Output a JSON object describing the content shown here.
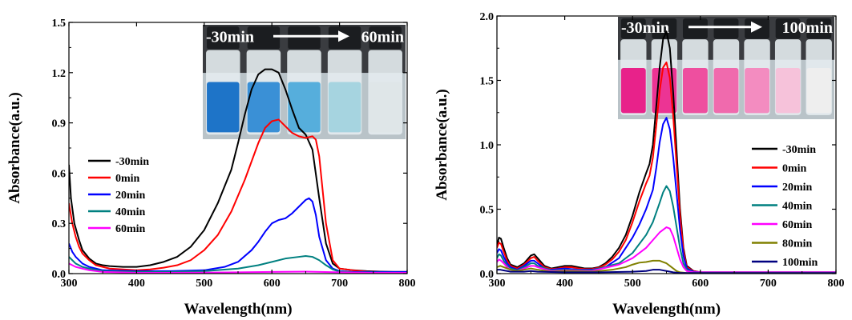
{
  "chart_data": [
    {
      "type": "line",
      "xlabel": "Wavelength(nm)",
      "ylabel": "Absorbance(a.u.)",
      "xlim": [
        300,
        800
      ],
      "ylim": [
        0,
        1.5
      ],
      "xticks": [
        "300",
        "400",
        "500",
        "600",
        "700",
        "800"
      ],
      "yticks": [
        "0.0",
        "0.3",
        "0.6",
        "0.9",
        "1.2",
        "1.5"
      ],
      "legend_position": "middle-left",
      "inset": {
        "label_start": "-30min",
        "label_end": "60min",
        "vial_colors": [
          "#1e74c8",
          "#3a90d6",
          "#56aedc",
          "#a6d4e0",
          "#dfe6e8"
        ]
      },
      "series": [
        {
          "name": "-30min",
          "color": "#000000",
          "x": [
            300,
            303,
            308,
            315,
            320,
            330,
            340,
            350,
            360,
            380,
            400,
            420,
            440,
            460,
            480,
            500,
            520,
            540,
            550,
            560,
            570,
            580,
            590,
            600,
            610,
            620,
            630,
            640,
            650,
            660,
            670,
            680,
            690,
            700,
            720,
            740,
            760,
            780,
            800
          ],
          "y": [
            0.65,
            0.45,
            0.3,
            0.2,
            0.14,
            0.09,
            0.06,
            0.05,
            0.045,
            0.04,
            0.04,
            0.05,
            0.07,
            0.1,
            0.16,
            0.26,
            0.42,
            0.62,
            0.78,
            0.95,
            1.1,
            1.19,
            1.22,
            1.22,
            1.2,
            1.1,
            0.98,
            0.87,
            0.83,
            0.74,
            0.45,
            0.18,
            0.06,
            0.03,
            0.02,
            0.015,
            0.012,
            0.01,
            0.01
          ]
        },
        {
          "name": "0min",
          "color": "#ff0000",
          "x": [
            300,
            305,
            310,
            315,
            320,
            330,
            340,
            350,
            360,
            380,
            400,
            420,
            440,
            460,
            480,
            500,
            520,
            540,
            560,
            580,
            590,
            600,
            610,
            620,
            630,
            640,
            650,
            660,
            665,
            670,
            680,
            690,
            700,
            720,
            740,
            760,
            780,
            800
          ],
          "y": [
            0.42,
            0.3,
            0.22,
            0.16,
            0.12,
            0.08,
            0.05,
            0.04,
            0.03,
            0.025,
            0.02,
            0.025,
            0.035,
            0.05,
            0.08,
            0.14,
            0.23,
            0.37,
            0.56,
            0.78,
            0.87,
            0.91,
            0.92,
            0.88,
            0.84,
            0.82,
            0.81,
            0.82,
            0.8,
            0.7,
            0.3,
            0.08,
            0.03,
            0.02,
            0.012,
            0.01,
            0.01,
            0.01
          ]
        },
        {
          "name": "20min",
          "color": "#0000ff",
          "x": [
            300,
            305,
            310,
            320,
            330,
            350,
            400,
            450,
            500,
            530,
            550,
            570,
            580,
            590,
            600,
            610,
            620,
            630,
            640,
            650,
            655,
            660,
            665,
            670,
            680,
            690,
            700,
            720,
            760,
            800
          ],
          "y": [
            0.18,
            0.13,
            0.1,
            0.06,
            0.04,
            0.02,
            0.015,
            0.015,
            0.02,
            0.04,
            0.07,
            0.14,
            0.19,
            0.25,
            0.3,
            0.32,
            0.33,
            0.36,
            0.4,
            0.44,
            0.45,
            0.43,
            0.35,
            0.22,
            0.08,
            0.03,
            0.015,
            0.01,
            0.01,
            0.01
          ]
        },
        {
          "name": "40min",
          "color": "#008080",
          "x": [
            300,
            305,
            310,
            320,
            330,
            350,
            400,
            450,
            500,
            550,
            580,
            600,
            620,
            640,
            650,
            660,
            670,
            680,
            690,
            700,
            720,
            760,
            800
          ],
          "y": [
            0.1,
            0.08,
            0.06,
            0.04,
            0.03,
            0.015,
            0.01,
            0.01,
            0.015,
            0.03,
            0.05,
            0.07,
            0.09,
            0.1,
            0.105,
            0.1,
            0.08,
            0.05,
            0.025,
            0.012,
            0.008,
            0.006,
            0.005
          ]
        },
        {
          "name": "60min",
          "color": "#ff00ff",
          "x": [
            300,
            305,
            310,
            320,
            330,
            350,
            400,
            450,
            500,
            550,
            600,
            650,
            700,
            750,
            800
          ],
          "y": [
            0.06,
            0.05,
            0.04,
            0.03,
            0.02,
            0.01,
            0.005,
            0.005,
            0.006,
            0.008,
            0.01,
            0.012,
            0.008,
            0.005,
            0.005
          ]
        }
      ]
    },
    {
      "type": "line",
      "xlabel": "Wavelength(nm)",
      "ylabel": "Absorbance(a.u.)",
      "xlim": [
        300,
        800
      ],
      "ylim": [
        0,
        2.0
      ],
      "xticks": [
        "300",
        "400",
        "500",
        "600",
        "700",
        "800"
      ],
      "yticks": [
        "0.0",
        "0.5",
        "1.0",
        "1.5",
        "2.0"
      ],
      "legend_position": "right",
      "inset": {
        "label_start": "-30min",
        "label_end": "100min",
        "vial_colors": [
          "#e8228a",
          "#ec3494",
          "#ee4f9f",
          "#f06aad",
          "#f38cc0",
          "#f6c2da",
          "#eeeeee"
        ]
      },
      "series": [
        {
          "name": "-30min",
          "color": "#000000",
          "x": [
            300,
            303,
            306,
            310,
            315,
            320,
            330,
            340,
            350,
            355,
            360,
            370,
            380,
            390,
            400,
            410,
            420,
            430,
            440,
            450,
            460,
            470,
            480,
            490,
            500,
            510,
            520,
            525,
            530,
            535,
            540,
            545,
            550,
            555,
            560,
            565,
            570,
            575,
            580,
            590,
            600,
            620,
            650,
            700,
            750,
            800
          ],
          "y": [
            0.22,
            0.28,
            0.27,
            0.2,
            0.12,
            0.07,
            0.05,
            0.08,
            0.14,
            0.15,
            0.12,
            0.06,
            0.04,
            0.05,
            0.06,
            0.06,
            0.05,
            0.04,
            0.04,
            0.05,
            0.08,
            0.13,
            0.2,
            0.3,
            0.45,
            0.63,
            0.78,
            0.85,
            1.0,
            1.3,
            1.6,
            1.82,
            1.88,
            1.75,
            1.4,
            0.95,
            0.5,
            0.2,
            0.06,
            0.02,
            0.01,
            0.01,
            0.01,
            0.01,
            0.01,
            0.01
          ]
        },
        {
          "name": "0min",
          "color": "#ff0000",
          "x": [
            300,
            303,
            306,
            310,
            315,
            320,
            330,
            340,
            350,
            355,
            360,
            370,
            380,
            390,
            400,
            410,
            420,
            430,
            440,
            450,
            460,
            470,
            480,
            490,
            500,
            510,
            520,
            525,
            530,
            535,
            540,
            545,
            550,
            555,
            560,
            565,
            570,
            575,
            580,
            590,
            600,
            620,
            650,
            700,
            750,
            800
          ],
          "y": [
            0.2,
            0.24,
            0.23,
            0.17,
            0.1,
            0.06,
            0.04,
            0.07,
            0.12,
            0.13,
            0.1,
            0.05,
            0.035,
            0.04,
            0.05,
            0.05,
            0.04,
            0.035,
            0.035,
            0.045,
            0.07,
            0.11,
            0.17,
            0.26,
            0.4,
            0.56,
            0.7,
            0.76,
            0.9,
            1.15,
            1.42,
            1.6,
            1.64,
            1.52,
            1.22,
            0.84,
            0.45,
            0.18,
            0.05,
            0.02,
            0.01,
            0.01,
            0.01,
            0.01,
            0.01,
            0.01
          ]
        },
        {
          "name": "20min",
          "color": "#0000ff",
          "x": [
            300,
            303,
            306,
            310,
            315,
            320,
            330,
            340,
            350,
            355,
            360,
            370,
            380,
            400,
            420,
            440,
            460,
            480,
            500,
            510,
            520,
            530,
            535,
            540,
            545,
            550,
            555,
            560,
            565,
            570,
            575,
            580,
            590,
            600,
            650,
            700,
            800
          ],
          "y": [
            0.16,
            0.19,
            0.18,
            0.13,
            0.08,
            0.05,
            0.03,
            0.06,
            0.1,
            0.1,
            0.08,
            0.04,
            0.03,
            0.04,
            0.03,
            0.03,
            0.05,
            0.12,
            0.28,
            0.38,
            0.5,
            0.65,
            0.82,
            1.02,
            1.16,
            1.21,
            1.12,
            0.9,
            0.62,
            0.34,
            0.14,
            0.04,
            0.015,
            0.01,
            0.01,
            0.01,
            0.01
          ]
        },
        {
          "name": "40min",
          "color": "#008080",
          "x": [
            300,
            303,
            306,
            310,
            315,
            320,
            330,
            340,
            350,
            355,
            360,
            380,
            400,
            440,
            480,
            500,
            520,
            530,
            540,
            545,
            550,
            555,
            560,
            565,
            570,
            575,
            580,
            590,
            600,
            650,
            800
          ],
          "y": [
            0.12,
            0.15,
            0.14,
            0.1,
            0.06,
            0.04,
            0.025,
            0.05,
            0.08,
            0.08,
            0.06,
            0.025,
            0.03,
            0.025,
            0.08,
            0.16,
            0.3,
            0.4,
            0.55,
            0.63,
            0.68,
            0.64,
            0.52,
            0.36,
            0.2,
            0.08,
            0.03,
            0.01,
            0.01,
            0.01,
            0.01
          ]
        },
        {
          "name": "60min",
          "color": "#ff00ff",
          "x": [
            300,
            303,
            306,
            310,
            315,
            320,
            330,
            340,
            350,
            355,
            360,
            380,
            400,
            440,
            480,
            500,
            520,
            530,
            540,
            550,
            555,
            560,
            565,
            570,
            575,
            580,
            590,
            600,
            650,
            800
          ],
          "y": [
            0.09,
            0.11,
            0.1,
            0.08,
            0.05,
            0.03,
            0.02,
            0.04,
            0.06,
            0.06,
            0.05,
            0.02,
            0.025,
            0.02,
            0.07,
            0.12,
            0.2,
            0.26,
            0.32,
            0.36,
            0.35,
            0.29,
            0.2,
            0.11,
            0.05,
            0.02,
            0.01,
            0.01,
            0.01,
            0.01
          ]
        },
        {
          "name": "80min",
          "color": "#808000",
          "x": [
            300,
            305,
            310,
            320,
            330,
            340,
            350,
            360,
            380,
            400,
            440,
            470,
            490,
            500,
            510,
            520,
            530,
            540,
            545,
            550,
            555,
            560,
            565,
            570,
            580,
            600,
            650,
            800
          ],
          "y": [
            0.05,
            0.06,
            0.05,
            0.03,
            0.02,
            0.03,
            0.04,
            0.03,
            0.015,
            0.02,
            0.015,
            0.03,
            0.05,
            0.07,
            0.085,
            0.09,
            0.1,
            0.1,
            0.09,
            0.08,
            0.06,
            0.04,
            0.02,
            0.01,
            0.005,
            0.005,
            0.005,
            0.005
          ]
        },
        {
          "name": "100min",
          "color": "#000080",
          "x": [
            300,
            305,
            310,
            320,
            340,
            350,
            360,
            400,
            450,
            500,
            520,
            530,
            540,
            550,
            560,
            570,
            580,
            600,
            650,
            800
          ],
          "y": [
            0.03,
            0.03,
            0.025,
            0.015,
            0.015,
            0.02,
            0.015,
            0.01,
            0.01,
            0.015,
            0.02,
            0.03,
            0.03,
            0.02,
            0.01,
            0.005,
            0.005,
            0.005,
            0.005,
            0.005
          ]
        }
      ]
    }
  ]
}
